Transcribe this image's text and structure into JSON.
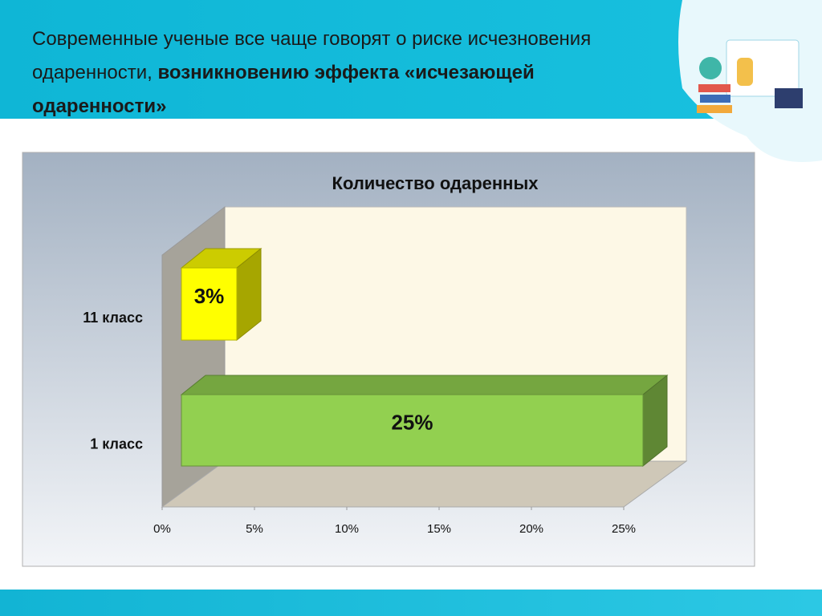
{
  "header": {
    "plain": "Современные ученые все чаще говорят о риске исчезновения одаренности, ",
    "bold": "возникновению эффекта «исчезающей одаренности»"
  },
  "chart_data": {
    "type": "bar",
    "orientation": "horizontal",
    "title": "Количество одаренных",
    "categories": [
      "11  класс",
      "1 класс"
    ],
    "series": [
      {
        "name": null,
        "values": [
          3,
          25
        ],
        "value_labels": [
          "3%",
          "25%"
        ],
        "colors": [
          "#ffff00",
          "#92d050"
        ]
      }
    ],
    "xlim": [
      0,
      25
    ],
    "xticks": [
      {
        "value": 0,
        "label": "0%"
      },
      {
        "value": 5,
        "label": "5%"
      },
      {
        "value": 10,
        "label": "10%"
      },
      {
        "value": 15,
        "label": "15%"
      },
      {
        "value": 20,
        "label": "20%"
      },
      {
        "value": 25,
        "label": "25%"
      }
    ]
  }
}
